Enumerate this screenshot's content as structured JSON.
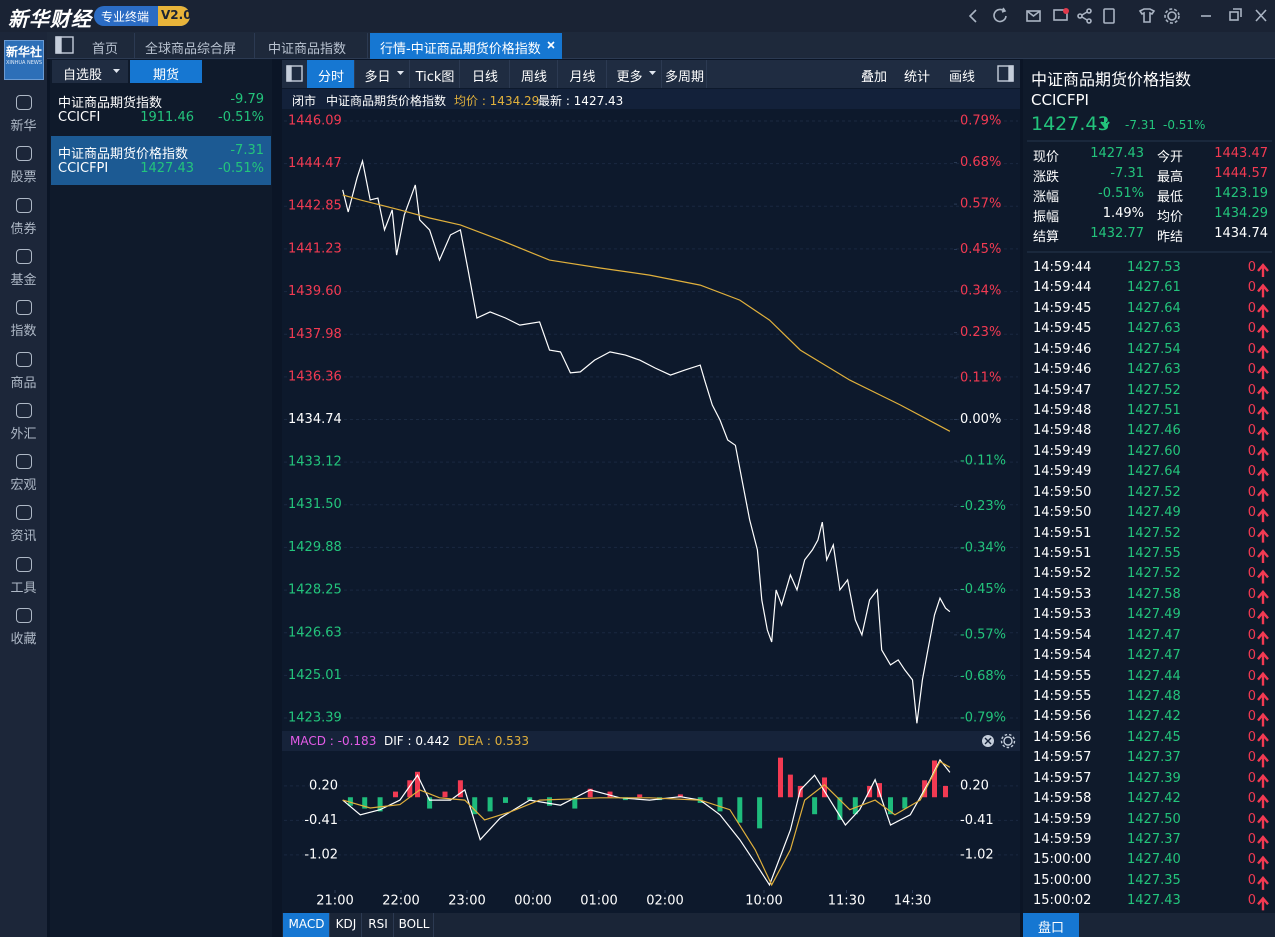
{
  "header": {
    "brand": "新华财经",
    "badge": "专业终端",
    "version": "V2.0",
    "logo": "新华社",
    "logo_sub": "XINHUA NEWS"
  },
  "tabs": [
    "首页",
    "全球商品综合屏",
    "中证商品指数",
    "行情-中证商品期货价格指数"
  ],
  "sidebar": [
    "新华",
    "股票",
    "债券",
    "基金",
    "指数",
    "商品",
    "外汇",
    "宏观",
    "资讯",
    "工具",
    "收藏"
  ],
  "watchlist": {
    "tabs": [
      "自选股",
      "期货"
    ],
    "items": [
      {
        "name": "中证商品期货指数",
        "change": -9.79,
        "code": "CCICFI",
        "price": 1911.46,
        "pct": "-0.51%"
      },
      {
        "name": "中证商品期货价格指数",
        "change": -7.31,
        "code": "CCICFPI",
        "price": 1427.43,
        "pct": "-0.51%"
      }
    ]
  },
  "toolbar": {
    "left": [
      "分时",
      "多日",
      "Tick图",
      "日线",
      "周线",
      "月线",
      "更多",
      "多周期"
    ],
    "right": [
      "叠加",
      "统计",
      "画线"
    ]
  },
  "chart_info": {
    "status": "闭市",
    "name": "中证商品期货价格指数",
    "avg": "均价 : 1434.29",
    "latest": "最新 : 1427.43"
  },
  "chart_data": [
    {
      "type": "line",
      "xlim": [
        0,
        560
      ],
      "ylim": [
        1423.39,
        1446.09
      ],
      "yticks": [
        1446.09,
        1444.47,
        1442.85,
        1441.23,
        {
          "value": 1439.6,
          "label": "1439.60"
        },
        1437.98,
        1436.36,
        1434.74,
        1433.12,
        {
          "value": 1431.5,
          "label": "1431.50"
        },
        1429.88,
        1428.25,
        1426.63,
        1425.01,
        1423.39
      ],
      "y2lim": [
        -0.79,
        0.79
      ],
      "y2ticks": [
        {
          "value": 0.79,
          "label": "0.79%"
        },
        {
          "value": 0.68,
          "label": "0.68%"
        },
        {
          "value": 0.57,
          "label": "0.57%"
        },
        {
          "value": 0.45,
          "label": "0.45%"
        },
        {
          "value": 0.34,
          "label": "0.34%"
        },
        {
          "value": 0.23,
          "label": "0.23%"
        },
        {
          "value": 0.11,
          "label": "0.11%"
        },
        {
          "value": 0,
          "label": "0.00%"
        },
        {
          "value": -0.11,
          "label": "-0.11%"
        },
        {
          "value": -0.23,
          "label": "-0.23%"
        },
        {
          "value": -0.34,
          "label": "-0.34%"
        },
        {
          "value": -0.45,
          "label": "-0.45%"
        },
        {
          "value": -0.57,
          "label": "-0.57%"
        },
        {
          "value": -0.68,
          "label": "-0.68%"
        },
        {
          "value": -0.79,
          "label": "-0.79%"
        }
      ],
      "grid": true,
      "series": [
        {
          "color": "#ffffff",
          "x": [
            7,
            12,
            20,
            25,
            32,
            39,
            45,
            52,
            56,
            63,
            68,
            73,
            77,
            86,
            95,
            105,
            114,
            121,
            129,
            141,
            155,
            168,
            186,
            195,
            205,
            214,
            223,
            236,
            250,
            264,
            277,
            291,
            305,
            318,
            332,
            336,
            343,
            350,
            357,
            364,
            370,
            377,
            384,
            388,
            393,
            397,
            401,
            406,
            414,
            420,
            427,
            434,
            439,
            443,
            447,
            453,
            459,
            466,
            473,
            479,
            486,
            493,
            497,
            505,
            512,
            518,
            525,
            529,
            534,
            539,
            545,
            550,
            555,
            559
          ],
          "values": [
            1443.47,
            1442.63,
            1443.92,
            1444.57,
            1443.09,
            1443.16,
            1441.95,
            1442.71,
            1440.99,
            1442.52,
            1443.09,
            1443.66,
            1442.33,
            1441.95,
            1440.8,
            1441.76,
            1441.95,
            1440.42,
            1438.6,
            1438.83,
            1438.6,
            1438.33,
            1438.45,
            1437.38,
            1437.31,
            1436.51,
            1436.55,
            1437,
            1437.31,
            1437.19,
            1437,
            1436.7,
            1436.43,
            1436.62,
            1436.81,
            1436.24,
            1435.29,
            1434.72,
            1433.96,
            1433.76,
            1432.44,
            1430.92,
            1429.78,
            1427.88,
            1426.74,
            1426.28,
            1428.26,
            1427.69,
            1428.83,
            1428.26,
            1429.4,
            1429.78,
            1430.16,
            1430.84,
            1429.4,
            1429.97,
            1428.26,
            1428.64,
            1427.12,
            1426.55,
            1427.88,
            1428.26,
            1425.98,
            1425.41,
            1425.6,
            1425.22,
            1424.84,
            1423.19,
            1424.84,
            1425.98,
            1427.31,
            1427.95,
            1427.57,
            1427.43
          ]
        },
        {
          "color": "#e0b03c",
          "x": [
            7,
            23,
            41,
            59,
            86,
            114,
            150,
            195,
            241,
            286,
            332,
            368,
            395,
            423,
            468,
            514,
            559
          ],
          "values": [
            1443.28,
            1443.09,
            1442.9,
            1442.71,
            1442.4,
            1442.14,
            1441.57,
            1440.8,
            1440.5,
            1440.23,
            1439.85,
            1439.28,
            1438.52,
            1437.38,
            1436.24,
            1435.29,
            1434.29
          ]
        }
      ]
    },
    {
      "type": "macd",
      "indicators": [
        {
          "text": "MACD : -0.183",
          "color": "#e45ce8"
        },
        {
          "text": "DIF : 0.442",
          "color": "#ffffff"
        },
        {
          "text": "DEA : 0.533",
          "color": "#e0b03c"
        }
      ],
      "xlim": [
        0,
        560
      ],
      "xticks": [
        {
          "value": 0,
          "label": "21:00"
        },
        {
          "value": 60,
          "label": "22:00"
        },
        {
          "value": 120,
          "label": "23:00"
        },
        {
          "value": 180,
          "label": "00:00"
        },
        {
          "value": 240,
          "label": "01:00"
        },
        {
          "value": 300,
          "label": "02:00"
        },
        {
          "value": 390,
          "label": "10:00"
        },
        {
          "value": 465,
          "label": "11:30"
        },
        {
          "value": 525,
          "label": "14:30"
        }
      ],
      "ylim": [
        -1.64,
        0.8
      ],
      "yticks": [
        {
          "value": 0.2,
          "label": "0.20"
        },
        -0.41,
        -1.02
      ],
      "grid": true,
      "colors": {
        "up": "#f23a52",
        "down": "#1ebc7c"
      },
      "histogram": {
        "x": [
          14,
          27,
          41,
          55,
          68,
          75,
          86,
          100,
          114,
          127,
          141,
          155,
          177,
          195,
          218,
          232,
          250,
          264,
          277,
          295,
          314,
          332,
          350,
          368,
          386,
          405,
          414,
          423,
          436,
          445,
          459,
          473,
          486,
          495,
          505,
          518,
          536,
          545,
          555
        ],
        "values": [
          -0.15,
          -0.2,
          -0.25,
          0.1,
          0.3,
          0.45,
          -0.2,
          0.1,
          0.3,
          -0.3,
          -0.25,
          -0.1,
          -0.05,
          -0.15,
          -0.2,
          0.15,
          0.1,
          -0.05,
          0.05,
          -0.05,
          0.05,
          -0.1,
          -0.25,
          -0.45,
          -0.55,
          0.7,
          0.4,
          0.2,
          -0.3,
          0.35,
          -0.4,
          -0.3,
          0.2,
          0.25,
          -0.3,
          -0.2,
          0.3,
          0.65,
          0.2
        ]
      },
      "series": [
        {
          "color": "#ffffff",
          "x": [
            7,
            23,
            41,
            59,
            75,
            86,
            105,
            118,
            132,
            150,
            177,
            205,
            232,
            259,
            286,
            314,
            332,
            350,
            368,
            386,
            395,
            414,
            423,
            436,
            450,
            464,
            477,
            491,
            505,
            523,
            541,
            550,
            559
          ],
          "values": [
            -0.05,
            -0.31,
            -0.22,
            -0.05,
            0.39,
            -0.05,
            -0.05,
            0.13,
            -0.75,
            -0.37,
            -0.05,
            -0.14,
            0.13,
            -0.01,
            -0.05,
            0.01,
            -0.05,
            -0.31,
            -0.75,
            -1.28,
            -1.55,
            -0.58,
            0.13,
            0.39,
            -0.05,
            -0.49,
            -0.22,
            0.31,
            -0.49,
            -0.31,
            0.31,
            0.66,
            0.44
          ]
        },
        {
          "color": "#e0b03c",
          "x": [
            7,
            32,
            59,
            77,
            95,
            118,
            136,
            159,
            186,
            241,
            286,
            332,
            359,
            382,
            397,
            414,
            427,
            445,
            468,
            491,
            509,
            532,
            550,
            559
          ],
          "values": [
            -0.05,
            -0.19,
            -0.13,
            0.13,
            -0.01,
            -0.05,
            -0.4,
            -0.26,
            -0.05,
            -0.01,
            -0.01,
            -0.05,
            -0.22,
            -0.93,
            -1.55,
            -0.93,
            -0.05,
            0.22,
            -0.22,
            -0.05,
            -0.31,
            -0.05,
            0.63,
            0.53
          ]
        }
      ]
    }
  ],
  "indicator_tabs": [
    "MACD",
    "KDJ",
    "RSI",
    "BOLL"
  ],
  "quote": {
    "name": "中证商品期货价格指数",
    "code": "CCICFPI",
    "price": 1427.43,
    "change": -7.31,
    "pct": "-0.51%",
    "stats": [
      {
        "label": "现价",
        "value": 1427.43,
        "tone": "down"
      },
      {
        "label": "今开",
        "value": 1443.47,
        "tone": "up"
      },
      {
        "label": "涨跌",
        "value": -7.31,
        "tone": "down"
      },
      {
        "label": "最高",
        "value": 1444.57,
        "tone": "up"
      },
      {
        "label": "涨幅",
        "value": "-0.51%",
        "tone": "down"
      },
      {
        "label": "最低",
        "value": 1423.19,
        "tone": "down"
      },
      {
        "label": "振幅",
        "value": "1.49%",
        "tone": "flat"
      },
      {
        "label": "均价",
        "value": 1434.29,
        "tone": "down"
      },
      {
        "label": "结算",
        "value": 1432.77,
        "tone": "down"
      },
      {
        "label": "昨结",
        "value": 1434.74,
        "tone": "flat"
      }
    ],
    "trades": [
      [
        "14:59:44",
        "1427.53",
        "0"
      ],
      [
        "14:59:44",
        "1427.61",
        "0"
      ],
      [
        "14:59:45",
        "1427.64",
        "0"
      ],
      [
        "14:59:45",
        "1427.63",
        "0"
      ],
      [
        "14:59:46",
        "1427.54",
        "0"
      ],
      [
        "14:59:46",
        "1427.63",
        "0"
      ],
      [
        "14:59:47",
        "1427.52",
        "0"
      ],
      [
        "14:59:48",
        "1427.51",
        "0"
      ],
      [
        "14:59:48",
        "1427.46",
        "0"
      ],
      [
        "14:59:49",
        "1427.60",
        "0"
      ],
      [
        "14:59:49",
        "1427.64",
        "0"
      ],
      [
        "14:59:50",
        "1427.52",
        "0"
      ],
      [
        "14:59:50",
        "1427.49",
        "0"
      ],
      [
        "14:59:51",
        "1427.52",
        "0"
      ],
      [
        "14:59:51",
        "1427.55",
        "0"
      ],
      [
        "14:59:52",
        "1427.52",
        "0"
      ],
      [
        "14:59:53",
        "1427.58",
        "0"
      ],
      [
        "14:59:53",
        "1427.49",
        "0"
      ],
      [
        "14:59:54",
        "1427.47",
        "0"
      ],
      [
        "14:59:54",
        "1427.47",
        "0"
      ],
      [
        "14:59:55",
        "1427.44",
        "0"
      ],
      [
        "14:59:55",
        "1427.48",
        "0"
      ],
      [
        "14:59:56",
        "1427.42",
        "0"
      ],
      [
        "14:59:56",
        "1427.45",
        "0"
      ],
      [
        "14:59:57",
        "1427.37",
        "0"
      ],
      [
        "14:59:57",
        "1427.39",
        "0"
      ],
      [
        "14:59:58",
        "1427.42",
        "0"
      ],
      [
        "14:59:59",
        "1427.50",
        "0"
      ],
      [
        "14:59:59",
        "1427.37",
        "0"
      ],
      [
        "15:00:00",
        "1427.40",
        "0"
      ],
      [
        "15:00:00",
        "1427.35",
        "0"
      ],
      [
        "15:00:02",
        "1427.43",
        "0"
      ]
    ],
    "tab": "盘口"
  }
}
